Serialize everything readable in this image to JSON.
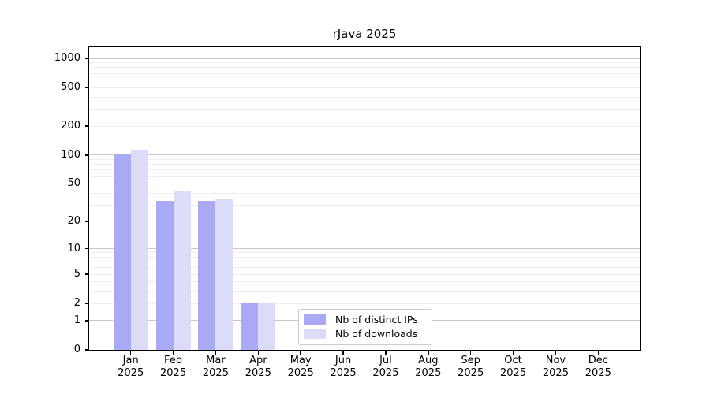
{
  "chart_data": {
    "type": "bar",
    "title": "rJava 2025",
    "scale": "log1p",
    "categories": [
      "Jan",
      "Feb",
      "Mar",
      "Apr",
      "May",
      "Jun",
      "Jul",
      "Aug",
      "Sep",
      "Oct",
      "Nov",
      "Dec"
    ],
    "x_tick_year_line": "2025",
    "series": [
      {
        "name": "Nb of distinct IPs",
        "color": "#a9a9f6",
        "values": [
          103,
          33,
          33,
          2,
          0,
          0,
          0,
          0,
          0,
          0,
          0,
          0
        ]
      },
      {
        "name": "Nb of downloads",
        "color": "#dcdcf9",
        "values": [
          113,
          42,
          35,
          2,
          0,
          0,
          0,
          0,
          0,
          0,
          0,
          0
        ]
      }
    ],
    "y_ticks": [
      0,
      1,
      2,
      5,
      10,
      20,
      50,
      100,
      200,
      500,
      1000
    ],
    "ylim": [
      0,
      1300
    ],
    "grid": "both",
    "legend_position": "lower center inside plot"
  },
  "colors": {
    "background": "#ffffff",
    "axis": "#000000",
    "major_grid": "#c9c9c9",
    "minor_grid": "#eeeeee",
    "legend_border": "#cccccc",
    "text": "#000000"
  }
}
